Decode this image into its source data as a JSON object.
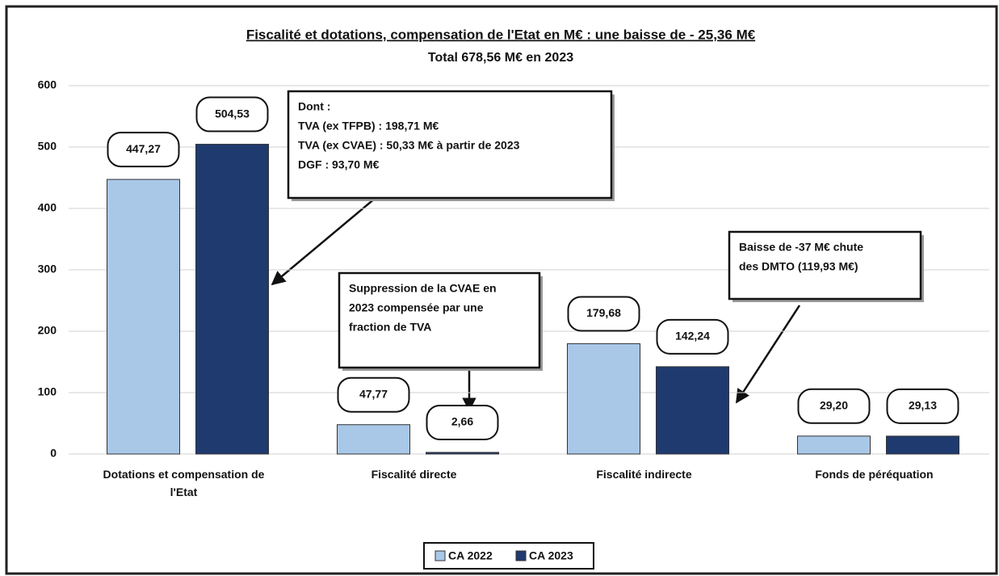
{
  "chart_data": {
    "type": "bar",
    "title": "Fiscalité et dotations, compensation de l'Etat en M€ : une baisse de - 25,36 M€",
    "subtitle": "Total 678,56 M€ en 2023",
    "categories": [
      "Dotations et compensation de l'Etat",
      "Fiscalité directe",
      "Fiscalité indirecte",
      "Fonds de péréquation"
    ],
    "series": [
      {
        "name": "CA 2022",
        "color": "#a9c8e8",
        "values": [
          447.27,
          47.77,
          179.68,
          29.2
        ],
        "value_labels": [
          "447,27",
          "47,77",
          "179,68",
          "29,20"
        ]
      },
      {
        "name": "CA 2023",
        "color": "#1f3a6e",
        "values": [
          504.53,
          2.66,
          142.24,
          29.13
        ],
        "value_labels": [
          "504,53",
          "2,66",
          "142,24",
          "29,13"
        ]
      }
    ],
    "ylim": [
      0,
      600
    ],
    "yticks": [
      0,
      100,
      200,
      300,
      400,
      500,
      600
    ],
    "grid": true,
    "legend": "bottom",
    "annotations": [
      [
        "Dont :",
        "TVA (ex TFPB) : 198,71 M€",
        "TVA (ex CVAE) : 50,33 M€ à partir de 2023",
        "DGF : 93,70 M€"
      ],
      [
        "Suppression de la CVAE en",
        "2023 compensée par une",
        "fraction de TVA"
      ],
      [
        "Baisse de -37 M€ chute",
        "des DMTO (119,93 M€)"
      ]
    ]
  }
}
